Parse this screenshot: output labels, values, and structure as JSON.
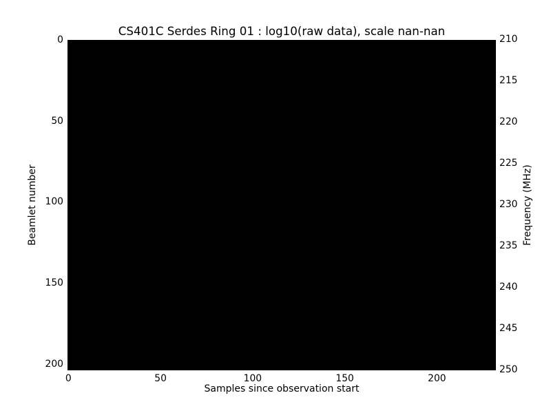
{
  "figure": {
    "background_color": "#ffffff",
    "text_color": "#000000"
  },
  "chart_data": {
    "type": "heatmap",
    "title": "CS401C Serdes Ring 01 : log10(raw data), scale nan-nan",
    "xlabel": "Samples since observation start",
    "ylabel_left": "Beamlet number",
    "ylabel_right": "Frequency (MHz)",
    "x_ticks": [
      0,
      50,
      100,
      150,
      200
    ],
    "y_left_ticks": [
      0,
      50,
      100,
      150,
      200
    ],
    "y_right_ticks": [
      210,
      215,
      220,
      225,
      230,
      235,
      240,
      245,
      250
    ],
    "x_range": [
      -0.5,
      232
    ],
    "y_left_range": [
      -0.5,
      203.5
    ],
    "y_right_range": [
      210,
      250
    ],
    "scale_min": "nan",
    "scale_max": "nan",
    "values": "uniform (every cell identical; no visible structure)",
    "cell_color": "#000000",
    "grid": false,
    "legend": "none",
    "colorbar": "none"
  }
}
